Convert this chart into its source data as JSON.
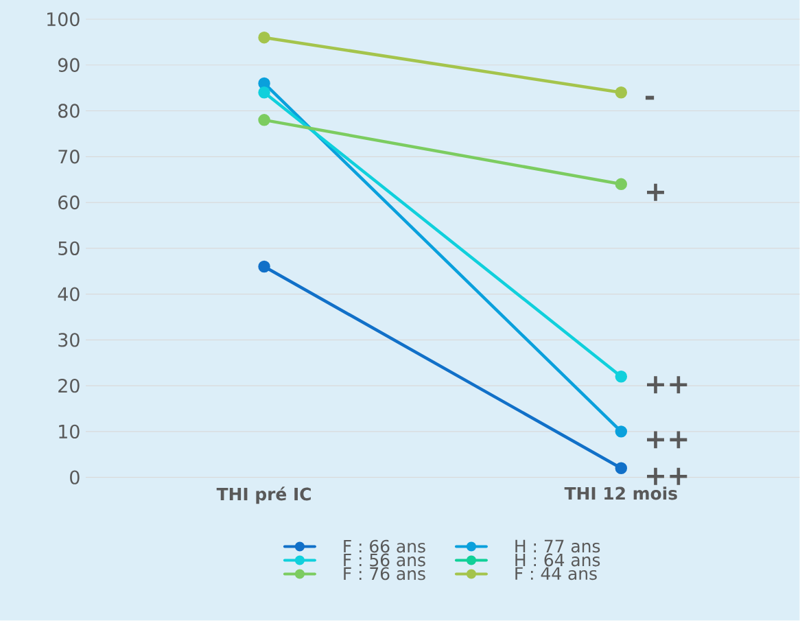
{
  "chart_data": {
    "type": "line",
    "categories": [
      "THI pré IC",
      "THI 12 mois"
    ],
    "series": [
      {
        "name": "F : 66 ans",
        "color": "#1170c8",
        "values": [
          46,
          2
        ]
      },
      {
        "name": "H : 77 ans",
        "color": "#0aa0dc",
        "values": [
          86,
          10
        ]
      },
      {
        "name": "F : 56 ans",
        "color": "#10d0dc",
        "values": [
          84,
          22
        ]
      },
      {
        "name": "H : 64 ans",
        "color": "#10d098",
        "values": [
          null,
          null
        ]
      },
      {
        "name": "F : 76 ans",
        "color": "#7ccc60",
        "values": [
          78,
          64
        ]
      },
      {
        "name": "F : 44 ans",
        "color": "#a4c44c",
        "values": [
          96,
          84
        ]
      }
    ],
    "ylim": [
      0,
      100
    ],
    "yticks": [
      0,
      10,
      20,
      30,
      40,
      50,
      60,
      70,
      80,
      90,
      100
    ],
    "grid": "y",
    "legend": "bottom",
    "marker": "circle",
    "line_style": "solid",
    "annotations": [
      {
        "text": "-",
        "x": "THI 12 mois",
        "y": 84
      },
      {
        "text": "+",
        "x": "THI 12 mois",
        "y": 64
      },
      {
        "text": "++",
        "x": "THI 12 mois",
        "y": 22
      },
      {
        "text": "++",
        "x": "THI 12 mois",
        "y": 10
      },
      {
        "text": "++",
        "x": "THI 12 mois",
        "y": 2
      }
    ]
  }
}
